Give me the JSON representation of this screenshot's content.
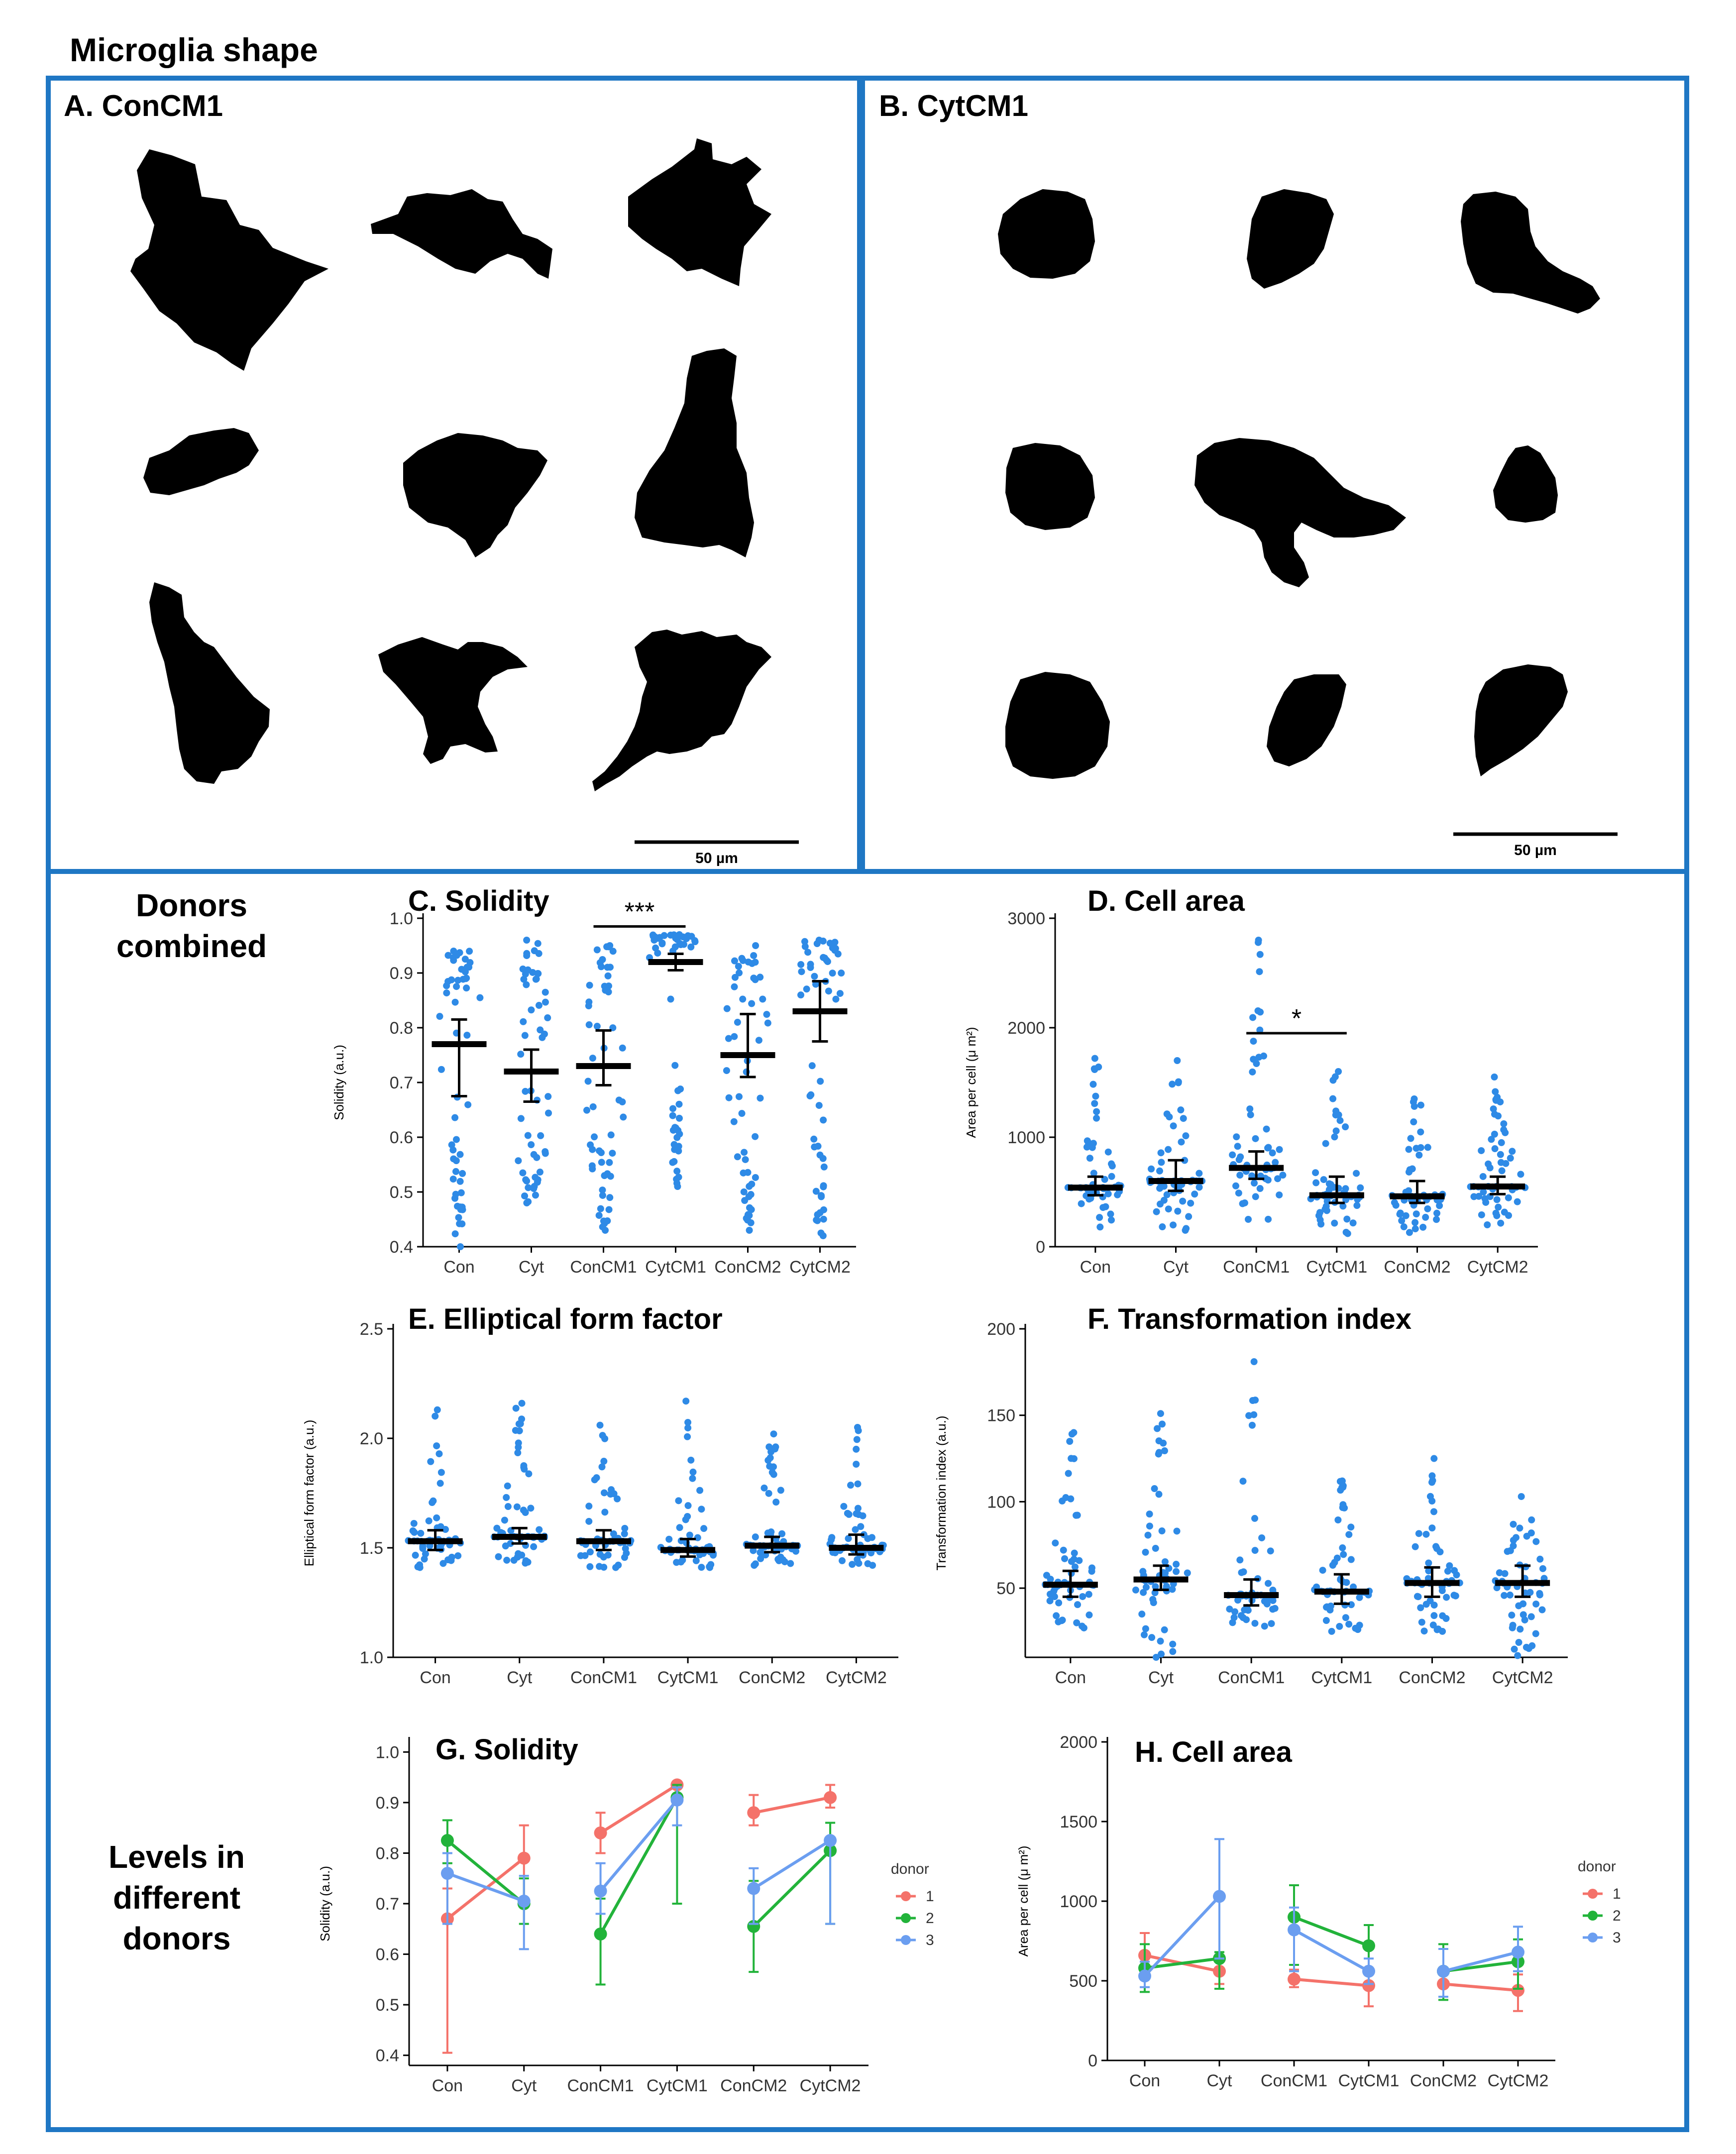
{
  "figure_title": "Microglia shape",
  "panel_a": {
    "title": "A.  ConCM1",
    "scale_bar_label": "50 µm"
  },
  "panel_b": {
    "title": "B.  CytCM1",
    "scale_bar_label": "50 µm"
  },
  "side_labels": {
    "donors_combined": "Donors combined",
    "levels_donors": "Levels in different donors"
  },
  "colors": {
    "frame": "#1f77c4",
    "point": "#2e8ae6",
    "donor1": "#f4726a",
    "donor2": "#22b33a",
    "donor3": "#6b9ef0"
  },
  "chart_data": [
    {
      "id": "C",
      "type": "scatter",
      "title": "C.  Solidity",
      "ylabel": "Solidity (a.u.)",
      "categories": [
        "Con",
        "Cyt",
        "ConCM1",
        "CytCM1",
        "ConCM2",
        "CytCM2"
      ],
      "ylim": [
        0.4,
        1.0
      ],
      "yticks": [
        0.4,
        0.5,
        0.6,
        0.7,
        0.8,
        0.9,
        1.0
      ],
      "ytick_labels": [
        "0.4",
        "0.5",
        "0.6",
        "0.7",
        "0.8",
        "0.9",
        "1.0"
      ],
      "median": [
        0.77,
        0.72,
        0.73,
        0.92,
        0.75,
        0.83
      ],
      "ci_low": [
        0.675,
        0.665,
        0.695,
        0.905,
        0.71,
        0.775
      ],
      "ci_high": [
        0.815,
        0.76,
        0.795,
        0.935,
        0.825,
        0.885
      ],
      "range": [
        [
          0.4,
          0.94
        ],
        [
          0.48,
          0.96
        ],
        [
          0.43,
          0.95
        ],
        [
          0.51,
          0.97
        ],
        [
          0.43,
          0.95
        ],
        [
          0.42,
          0.96
        ]
      ],
      "n_points": 55,
      "bias": [
        0.55,
        0.55,
        0.55,
        0.35,
        0.55,
        0.45
      ],
      "significance": {
        "from": 2,
        "to": 3,
        "label": "***",
        "y": 0.985
      }
    },
    {
      "id": "D",
      "type": "scatter",
      "title": "D.  Cell area",
      "ylabel": "Area per cell (μ m²)",
      "categories": [
        "Con",
        "Cyt",
        "ConCM1",
        "CytCM1",
        "ConCM2",
        "CytCM2"
      ],
      "ylim": [
        0,
        3000
      ],
      "yticks": [
        0,
        1000,
        2000,
        3000
      ],
      "ytick_labels": [
        "0",
        "1000",
        "2000",
        "3000"
      ],
      "median": [
        540,
        600,
        720,
        470,
        460,
        550
      ],
      "ci_low": [
        470,
        510,
        620,
        400,
        400,
        480
      ],
      "ci_high": [
        640,
        790,
        870,
        640,
        600,
        640
      ],
      "range": [
        [
          180,
          1720
        ],
        [
          150,
          1700
        ],
        [
          250,
          2800
        ],
        [
          120,
          1600
        ],
        [
          130,
          1350
        ],
        [
          200,
          1550
        ]
      ],
      "n_points": 55,
      "bias": [
        2.2,
        2.0,
        2.0,
        2.2,
        2.2,
        2.0
      ],
      "significance": {
        "from": 2,
        "to": 3,
        "label": "*",
        "y": 1950
      }
    },
    {
      "id": "E",
      "type": "scatter",
      "title": "E.  Elliptical form factor",
      "ylabel": "Elliptical form factor (a.u.)",
      "categories": [
        "Con",
        "Cyt",
        "ConCM1",
        "CytCM1",
        "ConCM2",
        "CytCM2"
      ],
      "ylim": [
        1.0,
        2.5
      ],
      "yticks": [
        1.0,
        1.5,
        2.0,
        2.5
      ],
      "ytick_labels": [
        "1.0",
        "1.5",
        "2.0",
        "2.5"
      ],
      "median": [
        1.53,
        1.55,
        1.53,
        1.49,
        1.51,
        1.5
      ],
      "ci_low": [
        1.49,
        1.52,
        1.49,
        1.46,
        1.48,
        1.47
      ],
      "ci_high": [
        1.58,
        1.59,
        1.58,
        1.54,
        1.55,
        1.56
      ],
      "range": [
        [
          1.41,
          2.13
        ],
        [
          1.43,
          2.16
        ],
        [
          1.41,
          2.06
        ],
        [
          1.41,
          2.17
        ],
        [
          1.42,
          2.02
        ],
        [
          1.42,
          2.05
        ]
      ],
      "n_points": 55,
      "bias": [
        2.6,
        2.4,
        2.6,
        2.8,
        2.8,
        2.8
      ]
    },
    {
      "id": "F",
      "type": "scatter",
      "title": "F.  Transformation index",
      "ylabel": "Transformation index (a.u.)",
      "categories": [
        "Con",
        "Cyt",
        "ConCM1",
        "CytCM1",
        "ConCM2",
        "CytCM2"
      ],
      "ylim": [
        10,
        200
      ],
      "yticks": [
        50,
        100,
        150,
        200
      ],
      "ytick_labels": [
        "50",
        "100",
        "150",
        "200"
      ],
      "median": [
        52,
        55,
        46,
        48,
        53,
        53
      ],
      "ci_low": [
        45,
        49,
        40,
        41,
        45,
        45
      ],
      "ci_high": [
        60,
        63,
        55,
        58,
        62,
        63
      ],
      "range": [
        [
          27,
          140
        ],
        [
          10,
          151
        ],
        [
          28,
          181
        ],
        [
          25,
          112
        ],
        [
          25,
          125
        ],
        [
          11,
          103
        ]
      ],
      "n_points": 55,
      "bias": [
        2.0,
        1.8,
        2.2,
        2.0,
        2.0,
        1.8
      ]
    },
    {
      "id": "G",
      "type": "line",
      "title": "G.  Solidity",
      "ylabel": "Solidity (a.u.)",
      "categories": [
        "Con",
        "Cyt",
        "ConCM1",
        "CytCM1",
        "ConCM2",
        "CytCM2"
      ],
      "ylim": [
        0.38,
        1.02
      ],
      "yticks": [
        0.4,
        0.5,
        0.6,
        0.7,
        0.8,
        0.9,
        1.0
      ],
      "ytick_labels": [
        "0.4",
        "0.5",
        "0.6",
        "0.7",
        "0.8",
        "0.9",
        "1.0"
      ],
      "legend_title": "donor",
      "legend_position": "right",
      "series": [
        {
          "name": "1",
          "values": [
            0.67,
            0.79,
            0.84,
            0.935,
            0.88,
            0.91
          ],
          "err": [
            [
              0.405,
              0.73
            ],
            [
              0.7,
              0.855
            ],
            [
              0.8,
              0.88
            ],
            [
              0.93,
              0.94
            ],
            [
              0.855,
              0.915
            ],
            [
              0.89,
              0.935
            ]
          ]
        },
        {
          "name": "2",
          "values": [
            0.825,
            0.7,
            0.64,
            0.91,
            0.655,
            0.805
          ],
          "err": [
            [
              0.78,
              0.865
            ],
            [
              0.66,
              0.75
            ],
            [
              0.54,
              0.71
            ],
            [
              0.7,
              0.935
            ],
            [
              0.565,
              0.745
            ],
            [
              0.66,
              0.86
            ]
          ]
        },
        {
          "name": "3",
          "values": [
            0.76,
            0.705,
            0.725,
            0.905,
            0.73,
            0.825
          ],
          "err": [
            [
              0.66,
              0.8
            ],
            [
              0.61,
              0.755
            ],
            [
              0.68,
              0.78
            ],
            [
              0.855,
              0.93
            ],
            [
              0.66,
              0.77
            ],
            [
              0.66,
              0.83
            ]
          ]
        }
      ]
    },
    {
      "id": "H",
      "type": "line",
      "title": "H.  Cell area",
      "ylabel": "Area per cell (μ m²)",
      "categories": [
        "Con",
        "Cyt",
        "ConCM1",
        "CytCM1",
        "ConCM2",
        "CytCM2"
      ],
      "ylim": [
        0,
        2000
      ],
      "yticks": [
        0,
        500,
        1000,
        1500,
        2000
      ],
      "ytick_labels": [
        "0",
        "500",
        "1000",
        "1500",
        "2000"
      ],
      "legend_title": "donor",
      "legend_position": "right",
      "series": [
        {
          "name": "1",
          "values": [
            660,
            560,
            510,
            470,
            480,
            440
          ],
          "err": [
            [
              540,
              800
            ],
            [
              480,
              640
            ],
            [
              460,
              570
            ],
            [
              340,
              560
            ],
            [
              400,
              560
            ],
            [
              310,
              540
            ]
          ]
        },
        {
          "name": "2",
          "values": [
            580,
            640,
            900,
            720,
            560,
            620
          ],
          "err": [
            [
              430,
              730
            ],
            [
              450,
              680
            ],
            [
              600,
              1100
            ],
            [
              570,
              850
            ],
            [
              380,
              730
            ],
            [
              450,
              760
            ]
          ]
        },
        {
          "name": "3",
          "values": [
            530,
            1030,
            820,
            560,
            560,
            680
          ],
          "err": [
            [
              460,
              620
            ],
            [
              640,
              1390
            ],
            [
              560,
              960
            ],
            [
              480,
              640
            ],
            [
              400,
              700
            ],
            [
              560,
              840
            ]
          ]
        }
      ]
    }
  ]
}
